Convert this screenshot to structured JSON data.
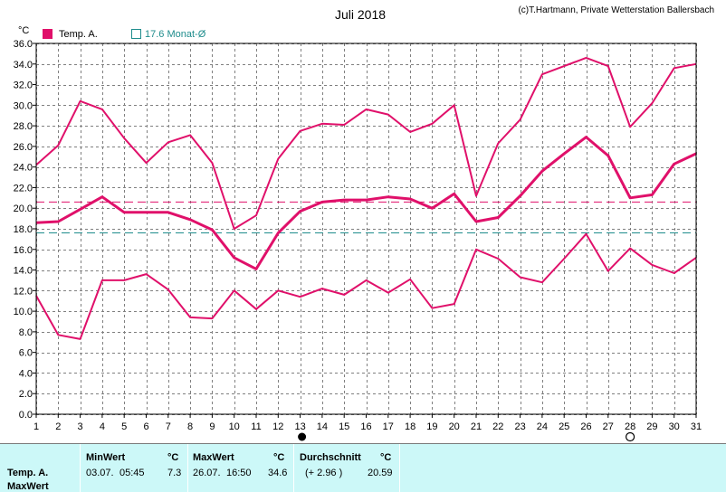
{
  "title": "Juli 2018",
  "credit": "(c)T.Hartmann, Private Wetterstation Ballersbach",
  "y_unit": "°C",
  "legend": {
    "temp_label": "Temp. A.",
    "avg_label": "17.6 Monat-Ø",
    "temp_color": "#e0106a",
    "avg_color": "#1e8c8c"
  },
  "chart_data": {
    "type": "line",
    "x": [
      1,
      2,
      3,
      4,
      5,
      6,
      7,
      8,
      9,
      10,
      11,
      12,
      13,
      14,
      15,
      16,
      17,
      18,
      19,
      20,
      21,
      22,
      23,
      24,
      25,
      26,
      27,
      28,
      29,
      30,
      31
    ],
    "xlim": [
      1,
      31
    ],
    "ylim": [
      0,
      36
    ],
    "y_ticks": [
      "0.0",
      "2.0",
      "4.0",
      "6.0",
      "8.0",
      "10.0",
      "12.0",
      "14.0",
      "16.0",
      "18.0",
      "20.0",
      "22.0",
      "24.0",
      "26.0",
      "28.0",
      "30.0",
      "32.0",
      "34.0",
      "36.0"
    ],
    "grid": true,
    "series": [
      {
        "name": "Temp. A.",
        "role": "max",
        "color": "#e0106a",
        "values": [
          24.2,
          26.1,
          30.4,
          29.6,
          26.8,
          24.4,
          26.4,
          27.1,
          24.4,
          18.0,
          19.3,
          24.8,
          27.5,
          28.2,
          28.1,
          29.6,
          29.1,
          27.4,
          28.2,
          30.0,
          21.2,
          26.3,
          28.6,
          33.0,
          33.8,
          34.6,
          33.8,
          27.9,
          30.2,
          33.6,
          34.0
        ]
      },
      {
        "role": "mean",
        "color": "#e0106a",
        "values": [
          18.6,
          18.7,
          19.9,
          21.1,
          19.6,
          19.6,
          19.6,
          18.9,
          17.9,
          15.2,
          14.1,
          17.6,
          19.7,
          20.6,
          20.8,
          20.8,
          21.1,
          20.9,
          20.0,
          21.4,
          18.7,
          19.1,
          21.2,
          23.6,
          25.3,
          26.9,
          25.1,
          21.0,
          21.3,
          24.3,
          25.3
        ]
      },
      {
        "role": "min",
        "color": "#e0106a",
        "values": [
          11.5,
          7.7,
          7.3,
          13.0,
          13.0,
          13.6,
          12.1,
          9.4,
          9.3,
          12.0,
          10.2,
          12.0,
          11.4,
          12.2,
          11.6,
          13.0,
          11.8,
          13.1,
          10.3,
          10.7,
          16.0,
          15.1,
          13.3,
          12.8,
          15.1,
          17.5,
          13.9,
          16.1,
          14.5,
          13.7,
          15.2
        ]
      }
    ],
    "reference_lines": [
      {
        "value": 20.6,
        "color": "#e0106a",
        "style": "dashed"
      },
      {
        "value": 17.6,
        "color": "#1e8c8c",
        "style": "dashed"
      }
    ],
    "moon_markers": [
      {
        "day": 13,
        "phase": "new"
      },
      {
        "day": 28,
        "phase": "full"
      }
    ]
  },
  "summary": {
    "row_label_1": "Temp. A.",
    "row_label_2": "MaxWert",
    "min": {
      "header": "MinWert",
      "unit": "°C",
      "date": "03.07.",
      "time": "05:45",
      "value": "7.3"
    },
    "max": {
      "header": "MaxWert",
      "unit": "°C",
      "date": "26.07.",
      "time": "16:50",
      "value": "34.6"
    },
    "avg": {
      "header": "Durchschnitt",
      "unit": "°C",
      "delta": "(+ 2.96 )",
      "value": "20.59"
    }
  }
}
